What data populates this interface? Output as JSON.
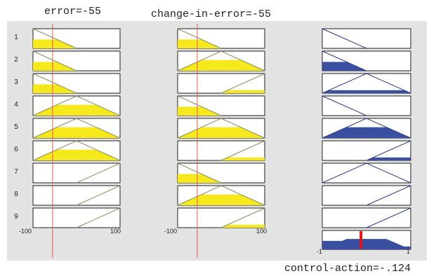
{
  "header": {
    "input1_title": "error=-55",
    "input2_title": "change-in-error=-55",
    "output_title": "control-action=-.124"
  },
  "rules": [
    "1",
    "2",
    "3",
    "4",
    "5",
    "6",
    "7",
    "8",
    "9"
  ],
  "axes": {
    "input1": {
      "min_label": "-100",
      "max_label": "100",
      "min": -100,
      "max": 100,
      "current": -55
    },
    "input2": {
      "min_label": "-100",
      "max_label": "100",
      "min": -100,
      "max": 100,
      "current": -55
    },
    "output": {
      "min_label": "-1",
      "max_label": "1",
      "min": -1,
      "max": 1,
      "current": -0.124
    }
  },
  "membership": {
    "input1": [
      "N",
      "N",
      "N",
      "Z",
      "Z",
      "Z",
      "P",
      "P",
      "P"
    ],
    "input2": [
      "N",
      "Z",
      "P",
      "N",
      "Z",
      "P",
      "N",
      "Z",
      "P"
    ],
    "output": [
      "N",
      "N",
      "Z",
      "N",
      "Z",
      "P",
      "Z",
      "P",
      "P"
    ]
  },
  "firing_levels": {
    "input1": [
      0.45,
      0.45,
      0.45,
      0.55,
      0.55,
      0.55,
      0,
      0,
      0
    ],
    "input2": [
      0.45,
      0.55,
      0.15,
      0.45,
      0.55,
      0.15,
      0.45,
      0.55,
      0.15
    ],
    "output": [
      0,
      0.45,
      0.15,
      0,
      0.55,
      0.15,
      0,
      0,
      0
    ]
  },
  "colors": {
    "input_fill": "#f5e81c",
    "output_fill": "#3b4fa0",
    "input_line": "#8d8d5a",
    "output_line": "#2f3b8c",
    "marker_line": "#e35a5a",
    "result_marker": "#e0141a",
    "panel_bg": "#e3e3e3"
  }
}
